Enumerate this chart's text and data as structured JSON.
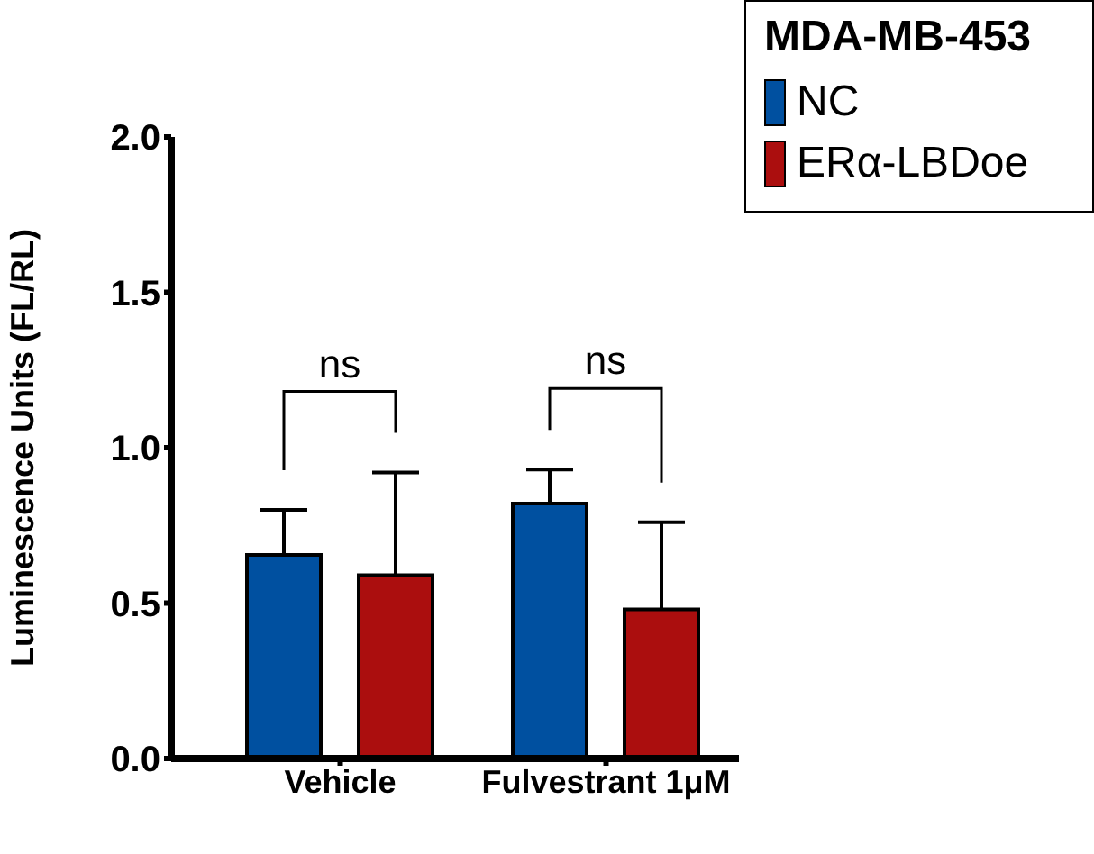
{
  "chart_data": {
    "type": "bar",
    "ylabel": "Luminescence Units (FL/RL)",
    "legend_title": "MDA-MB-453",
    "categories": [
      "Vehicle",
      "Fulvestrant 1μM"
    ],
    "series": [
      {
        "name": "NC",
        "color": "#0050a0",
        "values": [
          0.655,
          0.82
        ],
        "errors": [
          [
            0.655,
            0.8
          ],
          [
            0.82,
            0.93
          ]
        ]
      },
      {
        "name": "ERα-LBDoe",
        "color": "#ab0e0e",
        "values": [
          0.59,
          0.48
        ],
        "errors": [
          [
            0.59,
            0.92
          ],
          [
            0.48,
            0.76
          ]
        ]
      }
    ],
    "ylim": [
      0,
      2
    ],
    "yticks": [
      {
        "value": 0,
        "label": "0.0"
      },
      {
        "value": 0.5,
        "label": "0.5"
      },
      {
        "value": 1,
        "label": "1.0"
      },
      {
        "value": 1.5,
        "label": "1.5"
      },
      {
        "value": 2,
        "label": "2.0"
      }
    ],
    "legend": "top right",
    "annotations": [
      "ns",
      "ns"
    ]
  }
}
